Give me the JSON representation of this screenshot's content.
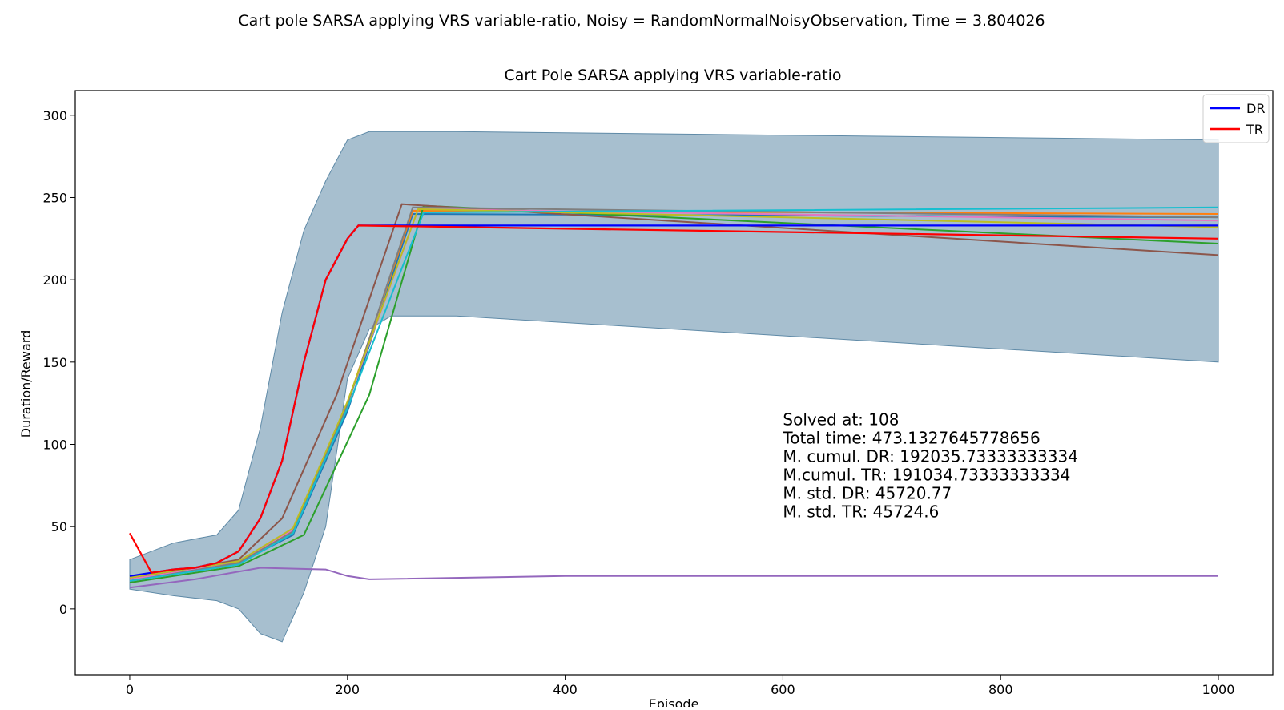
{
  "suptitle": "Cart pole SARSA applying VRS variable-ratio, Noisy = RandomNormalNoisyObservation, Time = 3.804026",
  "chart_data": {
    "type": "line",
    "title": "Cart Pole SARSA applying VRS variable-ratio",
    "xlabel": "Episode",
    "ylabel": "Duration/Reward",
    "xlim": [
      -50,
      1050
    ],
    "ylim": [
      -40,
      315
    ],
    "xticks": [
      0,
      200,
      400,
      600,
      800,
      1000
    ],
    "yticks": [
      0,
      50,
      100,
      150,
      200,
      250,
      300
    ],
    "grid": false,
    "legend": {
      "placement": "top-right",
      "entries": [
        {
          "label": "DR",
          "color": "#0000ff"
        },
        {
          "label": "TR",
          "color": "#ff0000"
        }
      ]
    },
    "series": [
      {
        "name": "DR",
        "color": "#0000ff",
        "x": [
          0,
          20,
          40,
          60,
          80,
          100,
          120,
          140,
          160,
          180,
          200,
          210,
          1000
        ],
        "y": [
          20,
          22,
          24,
          25,
          28,
          35,
          55,
          90,
          150,
          200,
          225,
          233,
          233
        ]
      },
      {
        "name": "TR",
        "color": "#ff0000",
        "x": [
          0,
          20,
          40,
          60,
          80,
          100,
          120,
          140,
          160,
          180,
          200,
          210,
          1000
        ],
        "y": [
          46,
          22,
          24,
          25,
          28,
          35,
          55,
          90,
          150,
          200,
          225,
          233,
          225
        ]
      }
    ],
    "band": {
      "color": "#5f8aa7",
      "x": [
        0,
        40,
        80,
        100,
        120,
        140,
        160,
        180,
        200,
        220,
        240,
        300,
        1000
      ],
      "upper": [
        30,
        40,
        45,
        60,
        110,
        180,
        230,
        260,
        285,
        290,
        290,
        290,
        285
      ],
      "lower": [
        12,
        8,
        5,
        0,
        -15,
        -20,
        10,
        50,
        140,
        170,
        178,
        178,
        150
      ]
    },
    "other_lines": [
      {
        "color": "#1f77b4",
        "x": [
          0,
          100,
          150,
          200,
          260,
          1000
        ],
        "y": [
          18,
          28,
          45,
          120,
          240,
          238
        ]
      },
      {
        "color": "#ff7f0e",
        "x": [
          0,
          100,
          150,
          200,
          260,
          1000
        ],
        "y": [
          19,
          29,
          48,
          125,
          242,
          240
        ]
      },
      {
        "color": "#2ca02c",
        "x": [
          0,
          100,
          160,
          220,
          270,
          1000
        ],
        "y": [
          16,
          26,
          45,
          130,
          245,
          222
        ]
      },
      {
        "color": "#8c564b",
        "x": [
          0,
          100,
          140,
          190,
          250,
          1000
        ],
        "y": [
          18,
          30,
          55,
          130,
          246,
          215
        ]
      },
      {
        "color": "#e377c2",
        "x": [
          0,
          100,
          150,
          200,
          265,
          1000
        ],
        "y": [
          18,
          28,
          48,
          125,
          243,
          236
        ]
      },
      {
        "color": "#7f7f7f",
        "x": [
          0,
          100,
          150,
          200,
          260,
          1000
        ],
        "y": [
          17,
          28,
          47,
          124,
          244,
          238
        ]
      },
      {
        "color": "#bcbd22",
        "x": [
          0,
          100,
          150,
          200,
          265,
          1000
        ],
        "y": [
          19,
          29,
          49,
          126,
          243,
          232
        ]
      },
      {
        "color": "#17becf",
        "x": [
          0,
          100,
          150,
          200,
          270,
          1000
        ],
        "y": [
          17,
          27,
          46,
          122,
          241,
          244
        ]
      },
      {
        "color": "#9467bd",
        "x": [
          0,
          60,
          120,
          180,
          200,
          220,
          400,
          1000
        ],
        "y": [
          13,
          18,
          25,
          24,
          20,
          18,
          20,
          20
        ]
      }
    ],
    "annotation": [
      "Solved at: 108",
      "Total time: 473.1327645778656",
      "M. cumul. DR: 192035.73333333334",
      "M.cumul. TR: 191034.73333333334",
      "M. std. DR: 45720.77",
      "M. std. TR: 45724.6"
    ],
    "annotation_anchor": {
      "x": 600,
      "y": 100
    }
  }
}
